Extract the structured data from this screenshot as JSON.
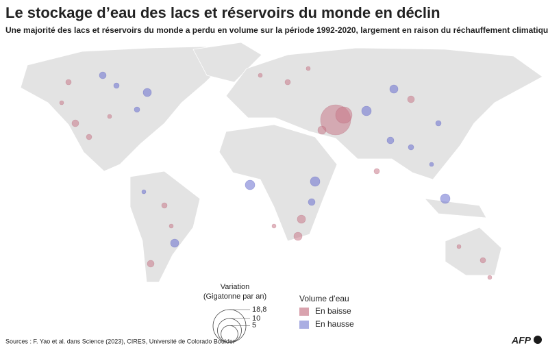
{
  "header": {
    "title": "Le stockage d’eau des lacs et réservoirs du monde en déclin",
    "subtitle": "Une majorité des lacs et réservoirs du monde a perdu en volume sur la période 1992-2020, largement en raison du réchauffement climatique"
  },
  "size_legend": {
    "title": [
      "Variation",
      "(Gigatonne par an)"
    ],
    "sizes": [
      {
        "value": 18.8,
        "label": "18,8"
      },
      10,
      5
    ]
  },
  "color_legend": {
    "title": "Volume d’eau",
    "items": [
      {
        "label": "En baisse",
        "color": "#d9a3ae"
      },
      {
        "label": "En hausse",
        "color": "#aaaee2"
      }
    ]
  },
  "footer": {
    "source": "Sources : F. Yao et al. dans Science (2023), CIRES, Université de Colorado Boulder",
    "logo": "AFP"
  }
}
